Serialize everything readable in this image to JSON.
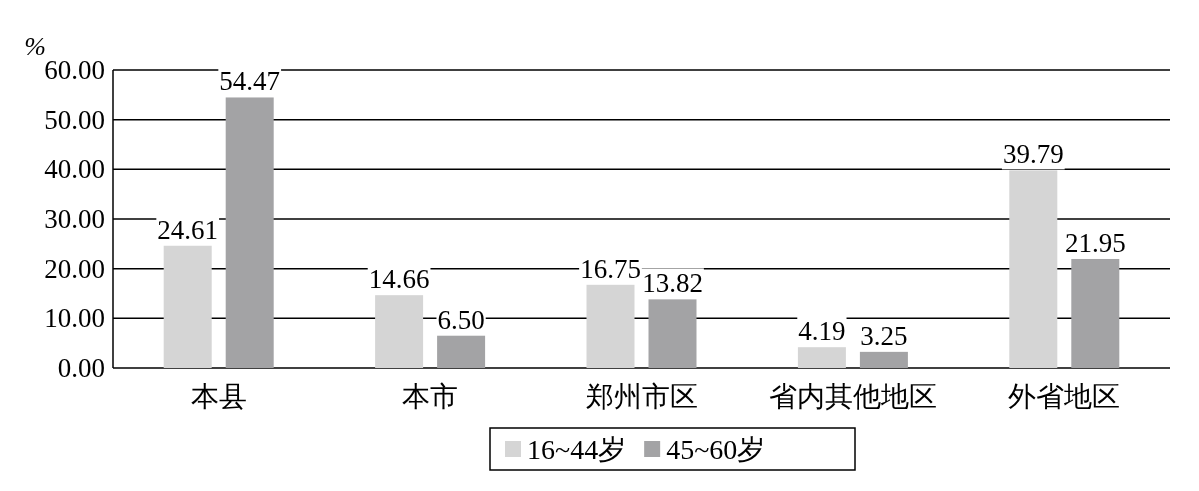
{
  "chart_data": {
    "type": "bar",
    "ylabel": "%",
    "categories": [
      "本县",
      "本市",
      "郑州市区",
      "省内其他地区",
      "外省地区"
    ],
    "series": [
      {
        "name": "16~44岁",
        "color": "#d5d5d5",
        "values": [
          24.61,
          14.66,
          16.75,
          4.19,
          39.79
        ]
      },
      {
        "name": "45~60岁",
        "color": "#a3a3a5",
        "values": [
          54.47,
          6.5,
          13.82,
          3.25,
          21.95
        ]
      }
    ],
    "value_labels": [
      [
        "24.61",
        "14.66",
        "16.75",
        "4.19",
        "39.79"
      ],
      [
        "54.47",
        "6.50",
        "13.82",
        "3.25",
        "21.95"
      ]
    ],
    "ylim": [
      0,
      60
    ],
    "yticks": [
      {
        "value": 0,
        "label": "0.00"
      },
      {
        "value": 10,
        "label": "10.00"
      },
      {
        "value": 20,
        "label": "20.00"
      },
      {
        "value": 30,
        "label": "30.00"
      },
      {
        "value": 40,
        "label": "40.00"
      },
      {
        "value": 50,
        "label": "50.00"
      },
      {
        "value": 60,
        "label": "60.00"
      }
    ],
    "grid": "y",
    "legend": "bottom"
  }
}
